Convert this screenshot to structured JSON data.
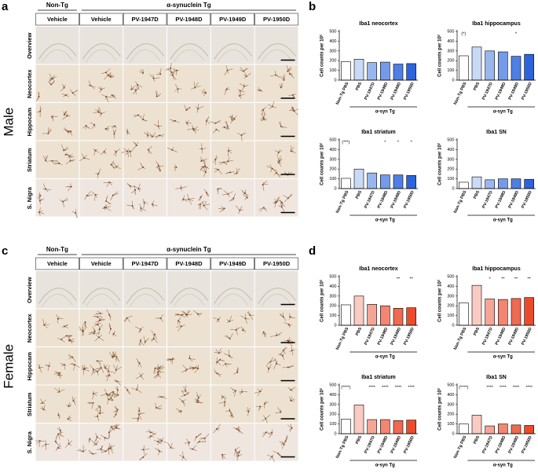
{
  "figure": {
    "image_panels": [
      {
        "panel": "a",
        "sex": "Male",
        "group_labels": [
          "Non-Tg",
          "α-synuclein Tg"
        ],
        "columns": [
          "Vehicle",
          "Vehicle",
          "PV-1947D",
          "PV-1948D",
          "PV-1949D",
          "PV-1950D"
        ],
        "rows": [
          "Overview",
          "Neocortex",
          "Hippocam",
          "Striatum",
          "S. Nigra"
        ]
      },
      {
        "panel": "c",
        "sex": "Female",
        "group_labels": [
          "Non-Tg",
          "α-synuclein Tg"
        ],
        "columns": [
          "Vehicle",
          "Vehicle",
          "PV-1947D",
          "PV-1948D",
          "PV-1949D",
          "PV-1950D"
        ],
        "rows": [
          "Overview",
          "Neocortex",
          "Hippocam",
          "Striatum",
          "S. Nigra"
        ]
      }
    ],
    "chart_panels": [
      "b",
      "d"
    ]
  },
  "chart_data": [
    {
      "type": "bar",
      "title": "Iba1 neocortex",
      "ylabel": "Cell counts per 10²",
      "xlabel": "α-syn Tg",
      "categories": [
        "Non-Tg PBS",
        "PBS",
        "PV-1947D",
        "PV-1948D",
        "PV-1949D",
        "PV-1950D"
      ],
      "values": [
        190,
        215,
        180,
        185,
        165,
        170
      ],
      "colors": [
        "#ffffff",
        "#c9daf6",
        "#99b7ef",
        "#749bea",
        "#4f7fe5",
        "#2c63df"
      ],
      "annotations": [
        null,
        null,
        null,
        null,
        null,
        null
      ],
      "ylim": [
        0,
        500
      ],
      "yticks": [
        0,
        100,
        200,
        300,
        400,
        500
      ]
    },
    {
      "type": "bar",
      "title": "Iba1 hippocampus",
      "ylabel": "Cell counts per 10²",
      "xlabel": "α-syn Tg",
      "categories": [
        "Non-Tg PBS",
        "PBS",
        "PV-1947D",
        "PV-1948D",
        "PV-1949D",
        "PV-1950D"
      ],
      "values": [
        250,
        340,
        300,
        290,
        245,
        265
      ],
      "colors": [
        "#ffffff",
        "#c9daf6",
        "#99b7ef",
        "#749bea",
        "#4f7fe5",
        "#2c63df"
      ],
      "annotations": [
        "(*)",
        null,
        null,
        null,
        "*",
        null
      ],
      "ylim": [
        0,
        500
      ],
      "yticks": [
        0,
        100,
        200,
        300,
        400,
        500
      ]
    },
    {
      "type": "bar",
      "title": "Iba1 striatum",
      "ylabel": "Cell counts per 10²",
      "xlabel": "α-syn Tg",
      "categories": [
        "Non-Tg PBS",
        "PBS",
        "PV-1947D",
        "PV-1948D",
        "PV-1949D",
        "PV-1950D"
      ],
      "values": [
        105,
        200,
        160,
        140,
        140,
        135
      ],
      "colors": [
        "#ffffff",
        "#c9daf6",
        "#99b7ef",
        "#749bea",
        "#4f7fe5",
        "#2c63df"
      ],
      "annotations": [
        "(***)",
        null,
        null,
        "*",
        "*",
        "*"
      ],
      "ylim": [
        0,
        500
      ],
      "yticks": [
        0,
        100,
        200,
        300,
        400,
        500
      ]
    },
    {
      "type": "bar",
      "title": "Iba1 SN",
      "ylabel": "Cell counts per 10²",
      "xlabel": "α-syn Tg",
      "categories": [
        "Non-Tg PBS",
        "PBS",
        "PV-1947D",
        "PV-1948D",
        "PV-1949D",
        "PV-1950D"
      ],
      "values": [
        65,
        120,
        90,
        100,
        100,
        95
      ],
      "colors": [
        "#ffffff",
        "#c9daf6",
        "#99b7ef",
        "#749bea",
        "#4f7fe5",
        "#2c63df"
      ],
      "annotations": [
        null,
        null,
        null,
        null,
        null,
        null
      ],
      "ylim": [
        0,
        500
      ],
      "yticks": [
        0,
        100,
        200,
        300,
        400,
        500
      ]
    },
    {
      "type": "bar",
      "title": "Iba1 neocortex",
      "ylabel": "Cell counts per 10²",
      "xlabel": "α-syn Tg",
      "categories": [
        "Non-Tg PBS",
        "PBS",
        "PV-1947D",
        "PV-1948D",
        "PV-1949D",
        "PV-1950D"
      ],
      "values": [
        210,
        300,
        215,
        200,
        175,
        180
      ],
      "colors": [
        "#ffffff",
        "#f9cbc3",
        "#f5a596",
        "#f28672",
        "#ee6a50",
        "#e94b2b"
      ],
      "annotations": [
        null,
        null,
        null,
        null,
        "**",
        "**"
      ],
      "ylim": [
        0,
        500
      ],
      "yticks": [
        0,
        100,
        200,
        300,
        400,
        500
      ]
    },
    {
      "type": "bar",
      "title": "Iba1 hippocampus",
      "ylabel": "Cell counts per 10²",
      "xlabel": "α-syn Tg",
      "categories": [
        "Non-Tg PBS",
        "PBS",
        "PV-1947D",
        "PV-1948D",
        "PV-1949D",
        "PV-1950D"
      ],
      "values": [
        230,
        410,
        270,
        265,
        275,
        285
      ],
      "colors": [
        "#ffffff",
        "#f9cbc3",
        "#f5a596",
        "#f28672",
        "#ee6a50",
        "#e94b2b"
      ],
      "annotations": [
        null,
        null,
        "*",
        "**",
        "**",
        "**"
      ],
      "ylim": [
        0,
        500
      ],
      "yticks": [
        0,
        100,
        200,
        300,
        400,
        500
      ]
    },
    {
      "type": "bar",
      "title": "Iba1 striatum",
      "ylabel": "Cell counts per 10²",
      "xlabel": "α-syn Tg",
      "categories": [
        "Non-Tg PBS",
        "PBS",
        "PV-1947D",
        "PV-1948D",
        "PV-1949D",
        "PV-1950D"
      ],
      "values": [
        150,
        295,
        145,
        145,
        135,
        140
      ],
      "colors": [
        "#ffffff",
        "#f9cbc3",
        "#f5a596",
        "#f28672",
        "#ee6a50",
        "#e94b2b"
      ],
      "annotations": [
        "(****)",
        null,
        "****",
        "****",
        "****",
        "****"
      ],
      "ylim": [
        0,
        500
      ],
      "yticks": [
        0,
        100,
        200,
        300,
        400,
        500
      ]
    },
    {
      "type": "bar",
      "title": "Iba1 SN",
      "ylabel": "Cell counts per 10²",
      "xlabel": "α-syn Tg",
      "categories": [
        "Non-Tg PBS",
        "PBS",
        "PV-1947D",
        "PV-1948D",
        "PV-1949D",
        "PV-1950D"
      ],
      "values": [
        100,
        190,
        80,
        100,
        90,
        85
      ],
      "colors": [
        "#ffffff",
        "#f9cbc3",
        "#f5a596",
        "#f28672",
        "#ee6a50",
        "#e94b2b"
      ],
      "annotations": [
        "(****)",
        null,
        "****",
        "****",
        "****",
        "****"
      ],
      "ylim": [
        0,
        500
      ],
      "yticks": [
        0,
        100,
        200,
        300,
        400,
        500
      ]
    }
  ]
}
